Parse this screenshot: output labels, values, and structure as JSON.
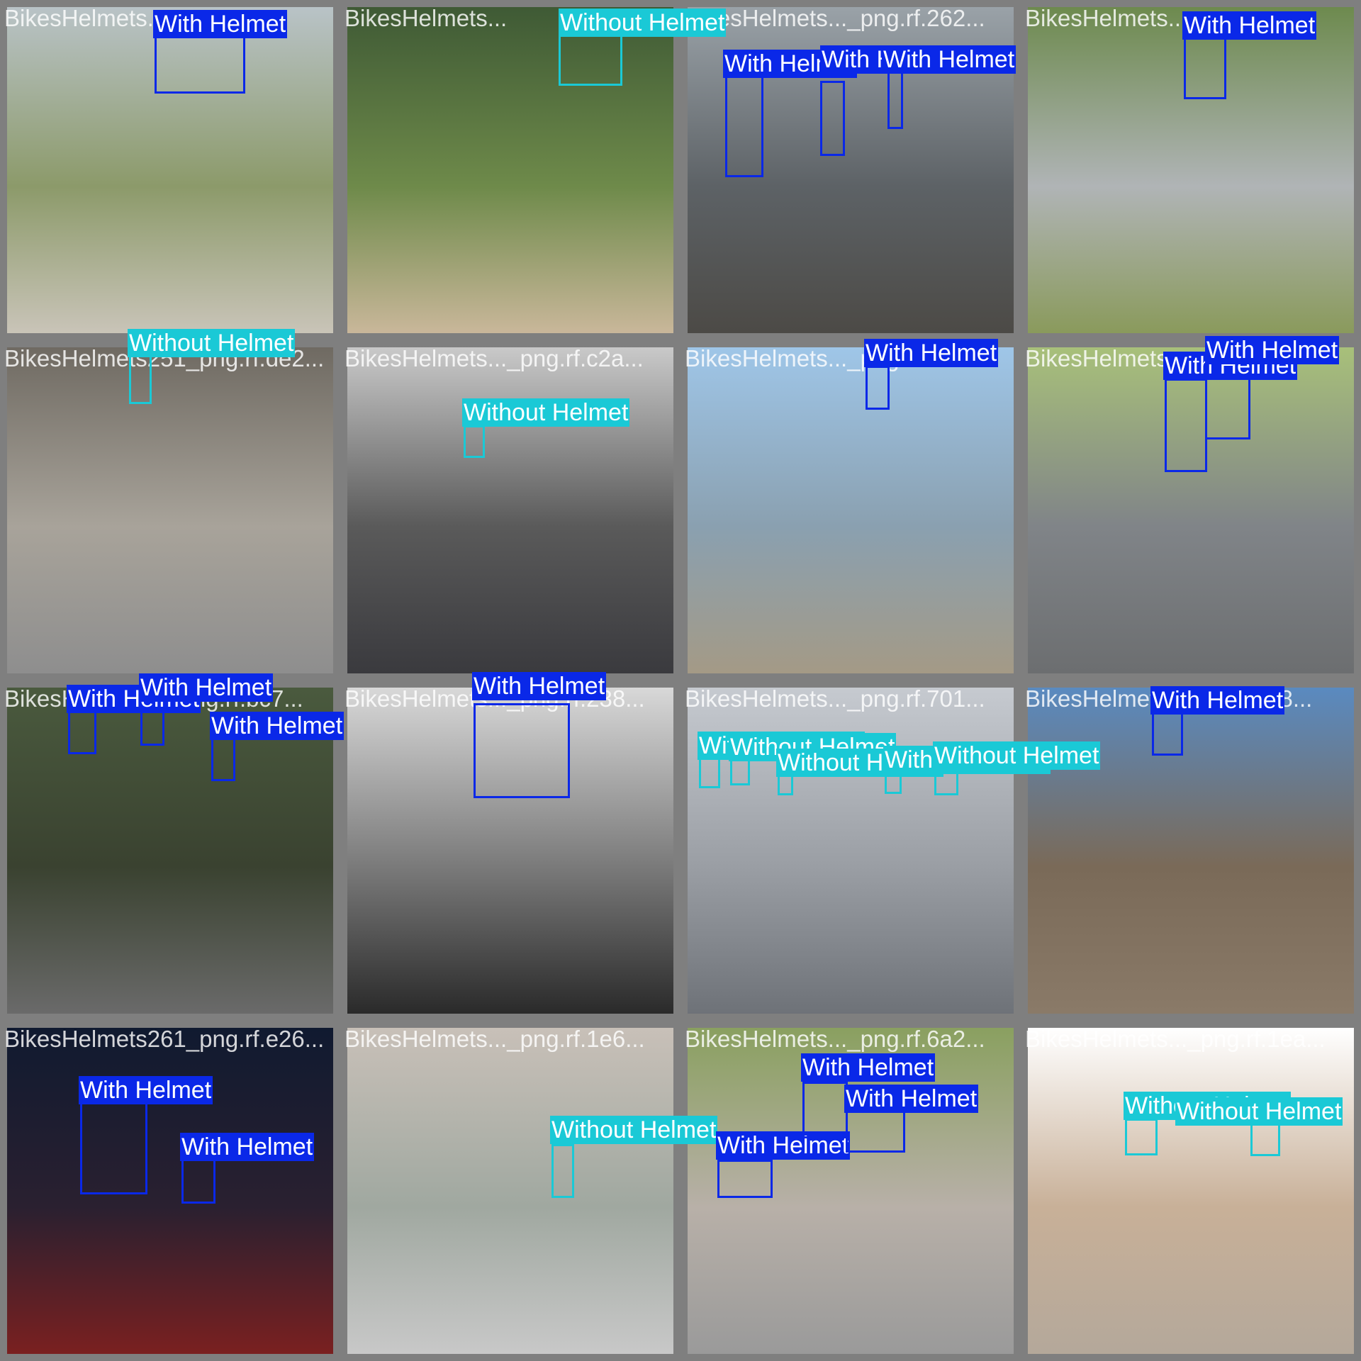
{
  "colors": {
    "with_helmet": "#0a28e8",
    "without_helmet": "#1ac9d6",
    "tile_border": "#7f7f7f"
  },
  "class_names": [
    "With Helmet",
    "Without Helmet"
  ],
  "tiles": [
    {
      "file_label": "BikesHelmets...",
      "scene": "outdoor-path",
      "detections": [
        {
          "class": "With Helmet"
        }
      ]
    },
    {
      "file_label": "BikesHelmets...",
      "scene": "park-green",
      "detections": [
        {
          "class": "Without Helmet"
        }
      ]
    },
    {
      "file_label": "BikesHelmets..._png.rf.262...",
      "scene": "street-grey",
      "detections": [
        {
          "class": "With Helmet"
        },
        {
          "class": "With Helmet"
        },
        {
          "class": "With Helmet"
        }
      ]
    },
    {
      "file_label": "BikesHelmets...",
      "scene": "road-green",
      "detections": [
        {
          "class": "With Helmet"
        }
      ]
    },
    {
      "file_label": "BikesHelmets251_png.rf.de2...",
      "scene": "building",
      "detections": [
        {
          "class": "Without Helmet"
        }
      ]
    },
    {
      "file_label": "BikesHelmets..._png.rf.c2a...",
      "scene": "city-street",
      "detections": [
        {
          "class": "Without Helmet"
        }
      ]
    },
    {
      "file_label": "BikesHelmets..._png.rf...",
      "scene": "sky-field",
      "detections": [
        {
          "class": "With Helmet"
        }
      ]
    },
    {
      "file_label": "BikesHelmets...",
      "scene": "road-trees",
      "detections": [
        {
          "class": "With Helmet"
        },
        {
          "class": "With Helmet"
        }
      ]
    },
    {
      "file_label": "BikesHelmets..._png.rf.bc7...",
      "scene": "forest-road",
      "detections": [
        {
          "class": "With Helmet"
        },
        {
          "class": "With Helmet"
        },
        {
          "class": "With Helmet"
        }
      ]
    },
    {
      "file_label": "BikesHelmets..._png.rf.238...",
      "scene": "bw-street",
      "detections": [
        {
          "class": "With Helmet"
        }
      ]
    },
    {
      "file_label": "BikesHelmets..._png.rf.701...",
      "scene": "market-street",
      "detections": [
        {
          "class": "Without Helmet"
        },
        {
          "class": "Without Helmet"
        },
        {
          "class": "Without Helmet"
        },
        {
          "class": "Without Helmet"
        },
        {
          "class": "Without Helmet"
        }
      ]
    },
    {
      "file_label": "BikesHelmets..._png.rf.58...",
      "scene": "mountain-trail",
      "detections": [
        {
          "class": "With Helmet"
        }
      ]
    },
    {
      "file_label": "BikesHelmets261_png.rf.e26...",
      "scene": "night-city",
      "detections": [
        {
          "class": "With Helmet"
        },
        {
          "class": "With Helmet"
        }
      ]
    },
    {
      "file_label": "BikesHelmets..._png.rf.1e6...",
      "scene": "city-day",
      "detections": [
        {
          "class": "Without Helmet"
        }
      ]
    },
    {
      "file_label": "BikesHelmets..._png.rf.6a2...",
      "scene": "street-trees",
      "detections": [
        {
          "class": "With Helmet"
        },
        {
          "class": "With Helmet"
        },
        {
          "class": "With Helmet"
        }
      ]
    },
    {
      "file_label": "BikesHelmets..._png.rf.1ea...",
      "scene": "white-road",
      "detections": [
        {
          "class": "Without Helmet"
        },
        {
          "class": "Without Helmet"
        }
      ]
    }
  ]
}
